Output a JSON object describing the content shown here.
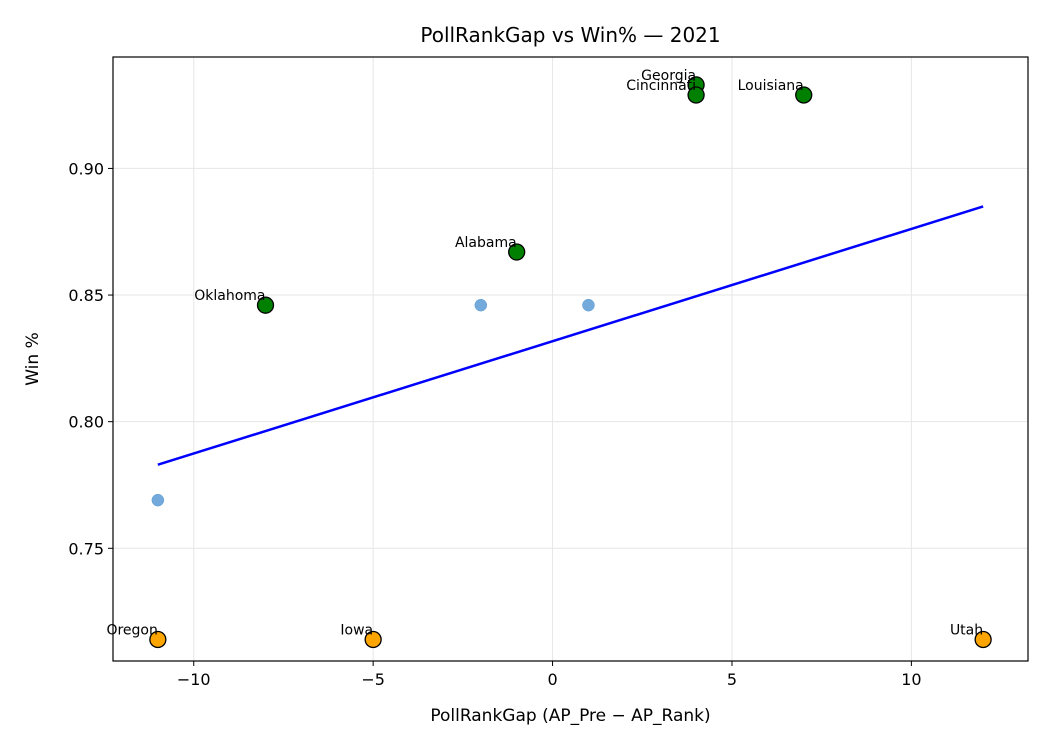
{
  "chart_data": {
    "type": "scatter",
    "title": "PollRankGap vs Win%  — 2021",
    "xlabel": "PollRankGap (AP_Pre − AP_Rank)",
    "ylabel": "Win %",
    "xlim": [
      -12.25,
      13.25
    ],
    "ylim": [
      0.7055,
      0.944
    ],
    "x_ticks": [
      -10,
      -5,
      0,
      5,
      10
    ],
    "x_tick_labels": [
      "−10",
      "−5",
      "0",
      "5",
      "10"
    ],
    "y_ticks": [
      0.75,
      0.8,
      0.85,
      0.9
    ],
    "y_tick_labels": [
      "0.75",
      "0.80",
      "0.85",
      "0.90"
    ],
    "grid": true,
    "series": [
      {
        "role": "background",
        "color": "#5b9bd5",
        "points": [
          {
            "x": -2,
            "y": 0.846
          },
          {
            "x": 1,
            "y": 0.846
          },
          {
            "x": -11,
            "y": 0.769
          }
        ]
      },
      {
        "role": "overperformers",
        "color": "#008000",
        "points": [
          {
            "x": 4,
            "y": 0.933,
            "label": "Georgia"
          },
          {
            "x": 4,
            "y": 0.929,
            "label": "Cincinnati"
          },
          {
            "x": 7,
            "y": 0.929,
            "label": "Louisiana"
          },
          {
            "x": -1,
            "y": 0.867,
            "label": "Alabama"
          },
          {
            "x": -8,
            "y": 0.846,
            "label": "Oklahoma"
          }
        ]
      },
      {
        "role": "underperformers",
        "color": "#ffa500",
        "points": [
          {
            "x": -11,
            "y": 0.714,
            "label": "Oregon"
          },
          {
            "x": -5,
            "y": 0.714,
            "label": "Iowa"
          },
          {
            "x": 12,
            "y": 0.714,
            "label": "Utah"
          }
        ]
      }
    ],
    "trendline": {
      "color": "#0000ff",
      "points": [
        {
          "x": -11,
          "y": 0.783
        },
        {
          "x": 12,
          "y": 0.885
        }
      ]
    }
  }
}
